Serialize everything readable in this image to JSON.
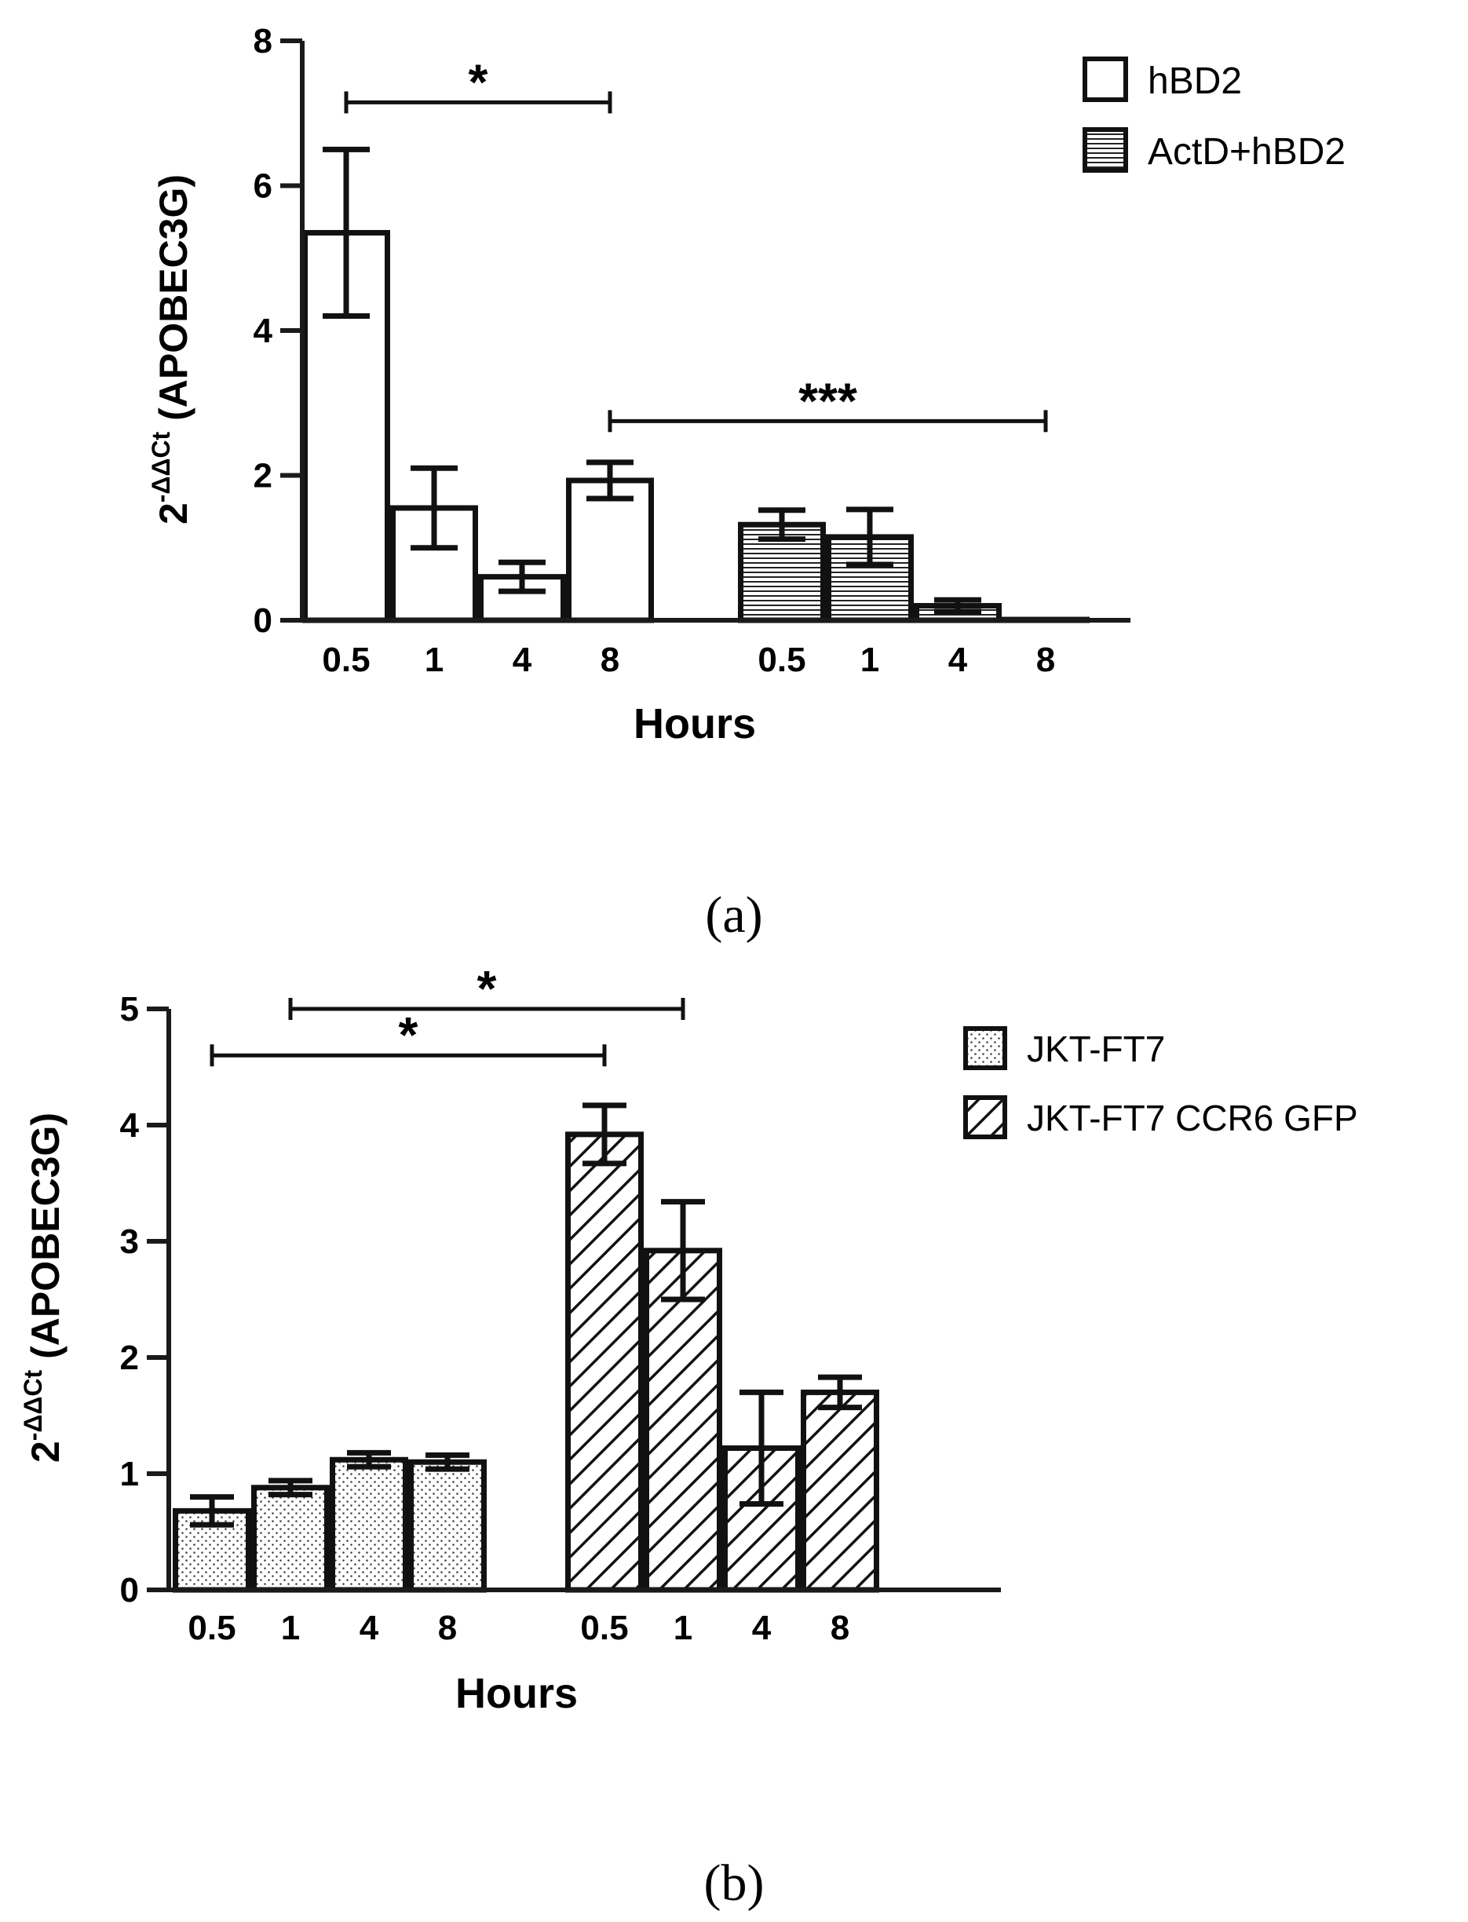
{
  "chart_data": [
    {
      "type": "bar",
      "panel_label": "(a)",
      "title": "",
      "xlabel": "Hours",
      "ylabel": {
        "base": "2",
        "superscript": "-ΔΔCt",
        "text": " (APOBEC3G)"
      },
      "ylim": [
        0,
        8
      ],
      "yticks": [
        "0",
        "2",
        "4",
        "6",
        "8"
      ],
      "categories": [
        "0.5",
        "1",
        "4",
        "8"
      ],
      "legend_position": "top-right",
      "series": [
        {
          "name": "hBD2",
          "pattern": "open",
          "values": [
            5.35,
            1.55,
            0.6,
            1.93
          ],
          "errors": [
            1.15,
            0.55,
            0.2,
            0.25
          ]
        },
        {
          "name": "ActD+hBD2",
          "pattern": "horizontal-stripes",
          "values": [
            1.32,
            1.15,
            0.2,
            0.01
          ],
          "errors": [
            0.2,
            0.38,
            0.08,
            0.0
          ]
        }
      ],
      "significance": [
        {
          "label": "*",
          "from_value_index": 0,
          "to_value_index": 3,
          "y": 7.15
        },
        {
          "label": "***",
          "from_value_index": 3,
          "to_value_index": 7,
          "y": 2.75
        }
      ]
    },
    {
      "type": "bar",
      "panel_label": "(b)",
      "title": "",
      "xlabel": "Hours",
      "ylabel": {
        "base": "2",
        "superscript": "-ΔΔCt",
        "text": " (APOBEC3G)"
      },
      "ylim": [
        0,
        5
      ],
      "yticks": [
        "0",
        "1",
        "2",
        "3",
        "4",
        "5"
      ],
      "categories": [
        "0.5",
        "1",
        "4",
        "8"
      ],
      "legend_position": "top-right",
      "series": [
        {
          "name": "JKT-FT7",
          "pattern": "dotted",
          "values": [
            0.68,
            0.88,
            1.12,
            1.1
          ],
          "errors": [
            0.12,
            0.06,
            0.06,
            0.06
          ]
        },
        {
          "name": "JKT-FT7 CCR6 GFP",
          "pattern": "diagonal-stripes",
          "values": [
            3.92,
            2.92,
            1.22,
            1.7
          ],
          "errors": [
            0.25,
            0.42,
            0.48,
            0.13
          ]
        }
      ],
      "significance": [
        {
          "label": "*",
          "from_value_index": 1,
          "to_value_index": 5,
          "y": 5.0
        },
        {
          "label": "*",
          "from_value_index": 0,
          "to_value_index": 4,
          "y": 4.6
        }
      ]
    }
  ]
}
